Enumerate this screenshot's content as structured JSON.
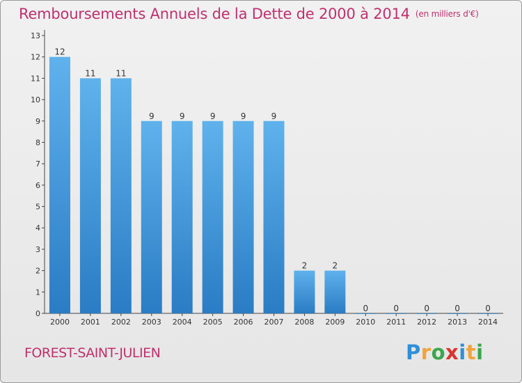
{
  "title": "Remboursements Annuels de la Dette de 2000 à 2014",
  "unit_note": "(en milliers d'€)",
  "commune": "FOREST-SAINT-JULIEN",
  "brand": {
    "letters": [
      "P",
      "r",
      "o",
      "x",
      "i",
      "t",
      "i"
    ],
    "colors": [
      "#2f8fd8",
      "#f2a33a",
      "#3aa64a",
      "#d9352f",
      "#2f8fd8",
      "#f2a33a",
      "#3aa64a"
    ]
  },
  "colors": {
    "bar_top": "#5fb2ec",
    "bar_bottom": "#2a7cc4",
    "title": "#c0306e"
  },
  "chart_data": {
    "type": "bar",
    "title": "Remboursements Annuels de la Dette de 2000 à 2014",
    "xlabel": "",
    "ylabel": "",
    "categories": [
      "2000",
      "2001",
      "2002",
      "2003",
      "2004",
      "2005",
      "2006",
      "2007",
      "2008",
      "2009",
      "2010",
      "2011",
      "2012",
      "2013",
      "2014"
    ],
    "values": [
      12,
      11,
      11,
      9,
      9,
      9,
      9,
      9,
      2,
      2,
      0,
      0,
      0,
      0,
      0
    ],
    "ylim": [
      0,
      13
    ],
    "yticks": [
      0,
      1,
      2,
      3,
      4,
      5,
      6,
      7,
      8,
      9,
      10,
      11,
      12,
      13
    ],
    "grid": false,
    "legend": "none"
  }
}
